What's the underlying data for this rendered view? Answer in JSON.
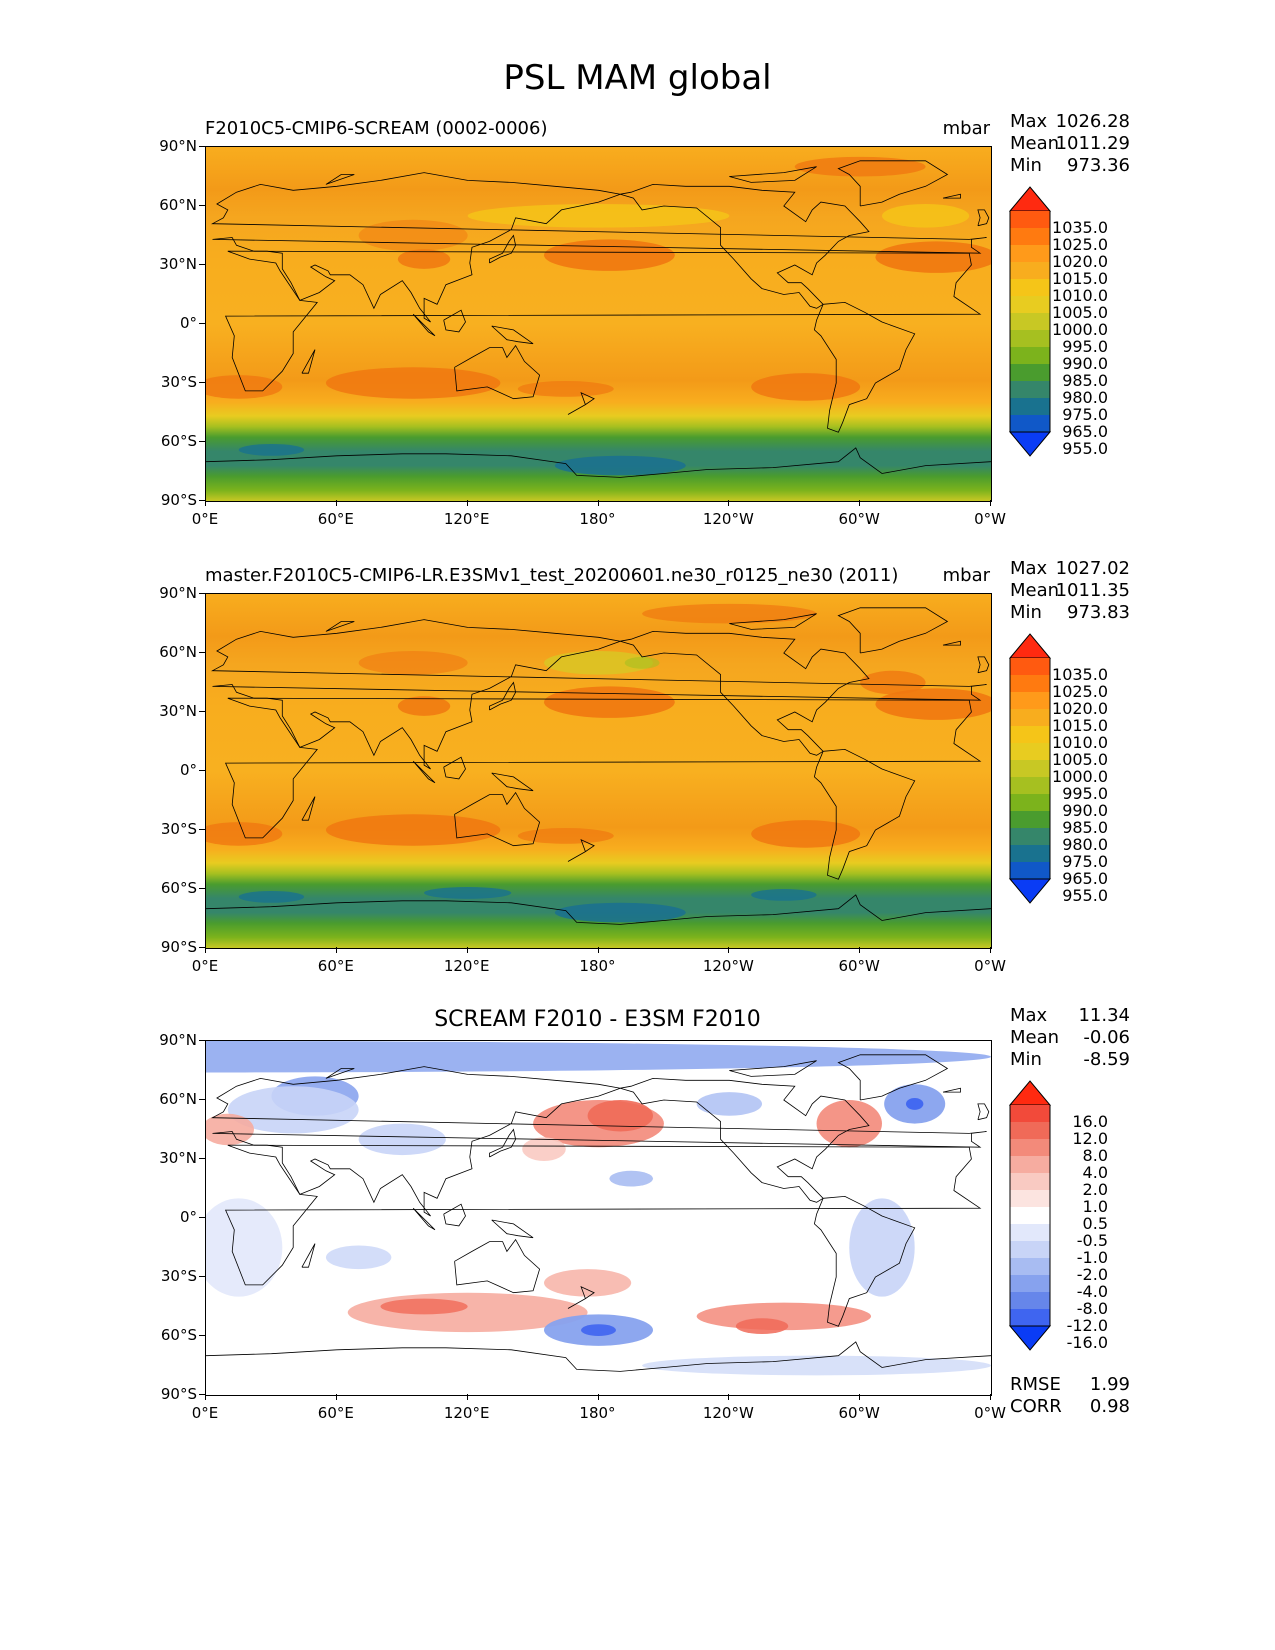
{
  "figure": {
    "title": "PSL MAM global"
  },
  "units": "mbar",
  "panels": [
    {
      "id": "test",
      "title_left": "F2010C5-CMIP6-SCREAM (0002-0006)",
      "title_right": "mbar",
      "title_center": "",
      "stats": {
        "max_label": "Max",
        "max": "1026.28",
        "mean_label": "Mean",
        "mean": "1011.29",
        "min_label": "Min",
        "min": "973.36"
      }
    },
    {
      "id": "ref",
      "title_left": "master.F2010C5-CMIP6-LR.E3SMv1_test_20200601.ne30_r0125_ne30 (2011)",
      "title_right": "mbar",
      "title_center": "",
      "stats": {
        "max_label": "Max",
        "max": "1027.02",
        "mean_label": "Mean",
        "mean": "1011.35",
        "min_label": "Min",
        "min": "973.83"
      }
    },
    {
      "id": "diff",
      "title_left": "",
      "title_right": "",
      "title_center": "SCREAM F2010 - E3SM F2010",
      "stats": {
        "max_label": "Max",
        "max": "11.34",
        "mean_label": "Mean",
        "mean": "-0.06",
        "min_label": "Min",
        "min": "-8.59"
      },
      "metrics": {
        "rmse_label": "RMSE",
        "rmse": "1.99",
        "corr_label": "CORR",
        "corr": "0.98"
      }
    }
  ],
  "axes": {
    "y_ticks": [
      "90°N",
      "60°N",
      "30°N",
      "0°",
      "30°S",
      "60°S",
      "90°S"
    ],
    "x_ticks": [
      "0°E",
      "60°E",
      "120°E",
      "180°",
      "120°W",
      "60°W",
      "0°W"
    ]
  },
  "colorbars": {
    "field": {
      "levels": [
        "1035.0",
        "1025.0",
        "1020.0",
        "1015.0",
        "1010.0",
        "1005.0",
        "1000.0",
        "995.0",
        "990.0",
        "985.0",
        "980.0",
        "975.0",
        "965.0",
        "955.0"
      ],
      "colors": [
        "#ff2a10",
        "#ff5a10",
        "#ff7a10",
        "#ff9a1a",
        "#f8ad1e",
        "#f5c518",
        "#e8cc20",
        "#c8c824",
        "#a6c020",
        "#7cb31c",
        "#4a9c2e",
        "#35866a",
        "#19728f",
        "#1058c8",
        "#0a3cf5"
      ]
    },
    "diff": {
      "levels": [
        "16.0",
        "12.0",
        "8.0",
        "4.0",
        "2.0",
        "1.0",
        "0.5",
        "-0.5",
        "-1.0",
        "-2.0",
        "-4.0",
        "-8.0",
        "-12.0",
        "-16.0"
      ],
      "colors": [
        "#ff2a10",
        "#f24a3a",
        "#f06a58",
        "#f38a7a",
        "#f6aca0",
        "#f9cac2",
        "#fce4e0",
        "#ffffff",
        "#e2e8fb",
        "#c8d4f7",
        "#a8bcf2",
        "#87a2ee",
        "#6686ea",
        "#3f65f0",
        "#0a3cf5"
      ]
    }
  }
}
